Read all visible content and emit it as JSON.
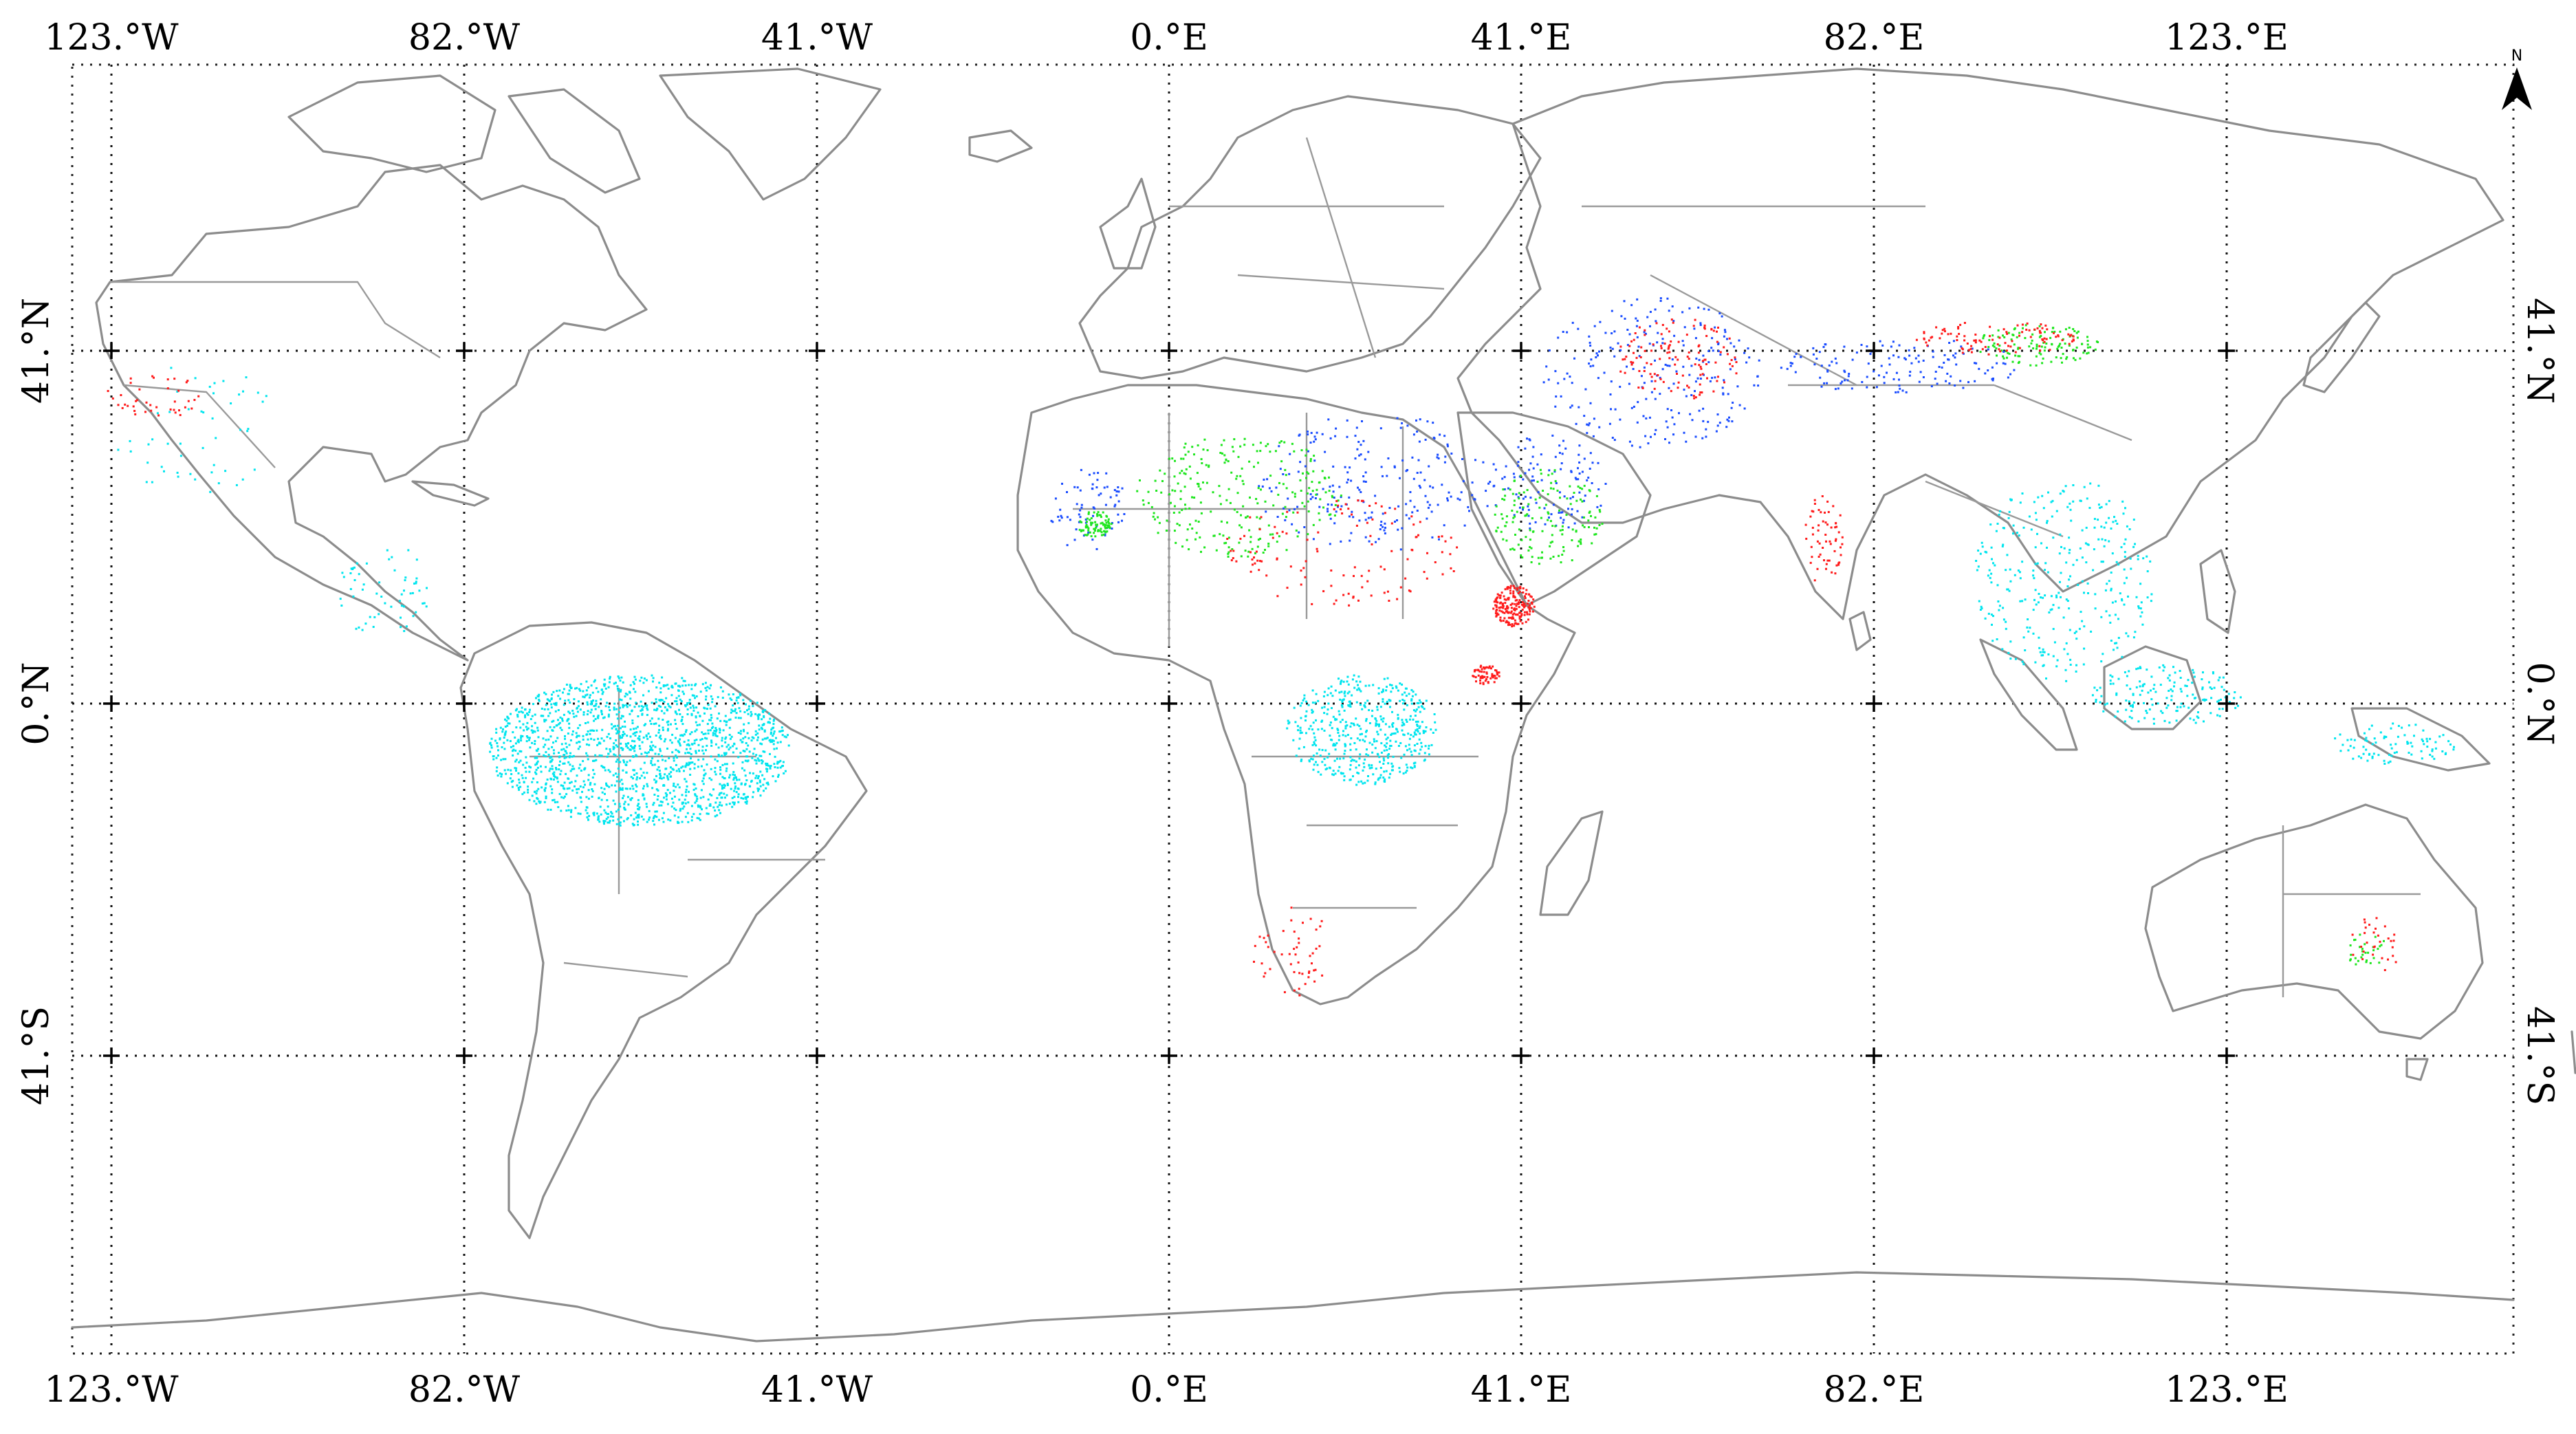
{
  "map": {
    "top_longitude_labels": [
      "123.°W",
      "82.°W",
      "41.°W",
      "0.°E",
      "41.°E",
      "82.°E",
      "123.°E"
    ],
    "bottom_longitude_labels": [
      "123.°W",
      "82.°W",
      "41.°W",
      "0.°E",
      "41.°E",
      "82.°E",
      "123.°E"
    ],
    "left_latitude_labels": [
      "41.°N",
      "0.°N",
      "41.°S"
    ],
    "right_latitude_labels": [
      "41.°N",
      "0.°N",
      "41.°S"
    ],
    "north_arrow": {
      "label": "N",
      "icon": "north-arrow-icon"
    },
    "point_colors": {
      "cyan": "#00e5ee",
      "red": "#ff1a1a",
      "green": "#1ee61e",
      "blue": "#1a4cff"
    },
    "coastline_color": "#8c8c8c"
  }
}
